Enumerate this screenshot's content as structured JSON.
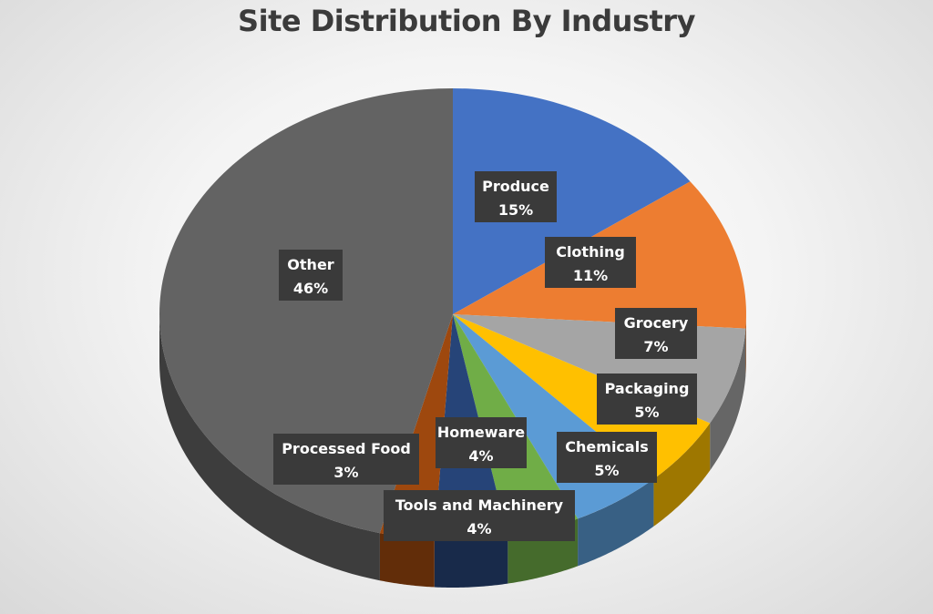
{
  "chart_data": {
    "type": "pie",
    "title": "Site Distribution By Industry",
    "slices": [
      {
        "label": "Produce",
        "value": 15,
        "value_label": "15%",
        "color": "#4472C4"
      },
      {
        "label": "Clothing",
        "value": 11,
        "value_label": "11%",
        "color": "#ED7D31"
      },
      {
        "label": "Grocery",
        "value": 7,
        "value_label": "7%",
        "color": "#A5A5A5"
      },
      {
        "label": "Packaging",
        "value": 5,
        "value_label": "5%",
        "color": "#FFC000"
      },
      {
        "label": "Chemicals",
        "value": 5,
        "value_label": "5%",
        "color": "#5B9BD5"
      },
      {
        "label": "Homeware",
        "value": 4,
        "value_label": "4%",
        "color": "#70AD47"
      },
      {
        "label": "Tools and Machinery",
        "value": 4,
        "value_label": "4%",
        "color": "#264478"
      },
      {
        "label": "Processed Food",
        "value": 3,
        "value_label": "3%",
        "color": "#9E480E"
      },
      {
        "label": "Other",
        "value": 46,
        "value_label": "46%",
        "color": "#636363"
      }
    ],
    "start_angle": "12 o'clock",
    "direction": "clockwise",
    "style": "3D"
  }
}
